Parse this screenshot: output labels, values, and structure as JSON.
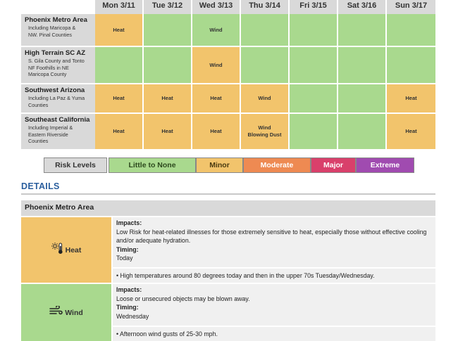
{
  "grid": {
    "days": [
      "Mon 3/11",
      "Tue 3/12",
      "Wed 3/13",
      "Thu 3/14",
      "Fri 3/15",
      "Sat 3/16",
      "Sun 3/17"
    ],
    "regions": [
      {
        "name": "Phoenix Metro Area",
        "sub": "Including Maricopa &\nNW. Pinal Counties",
        "cells": [
          {
            "risk": "minor",
            "text": "Heat"
          },
          {
            "risk": "little",
            "text": ""
          },
          {
            "risk": "little",
            "text": "Wind"
          },
          {
            "risk": "little",
            "text": ""
          },
          {
            "risk": "little",
            "text": ""
          },
          {
            "risk": "little",
            "text": ""
          },
          {
            "risk": "little",
            "text": ""
          }
        ]
      },
      {
        "name": "High Terrain SC AZ",
        "sub": "S. Gila County and Tonto\nNF Foothills in NE\nMaricopa County",
        "cells": [
          {
            "risk": "little",
            "text": ""
          },
          {
            "risk": "little",
            "text": ""
          },
          {
            "risk": "minor",
            "text": "Wind"
          },
          {
            "risk": "little",
            "text": ""
          },
          {
            "risk": "little",
            "text": ""
          },
          {
            "risk": "little",
            "text": ""
          },
          {
            "risk": "little",
            "text": ""
          }
        ]
      },
      {
        "name": "Southwest Arizona",
        "sub": "Including La Paz & Yuma\nCounties",
        "cells": [
          {
            "risk": "minor",
            "text": "Heat"
          },
          {
            "risk": "minor",
            "text": "Heat"
          },
          {
            "risk": "minor",
            "text": "Heat"
          },
          {
            "risk": "minor",
            "text": "Wind"
          },
          {
            "risk": "little",
            "text": ""
          },
          {
            "risk": "little",
            "text": ""
          },
          {
            "risk": "minor",
            "text": "Heat"
          }
        ]
      },
      {
        "name": "Southeast California",
        "sub": "Including Imperial &\nEastern Riverside\nCounties",
        "cells": [
          {
            "risk": "minor",
            "text": "Heat"
          },
          {
            "risk": "minor",
            "text": "Heat"
          },
          {
            "risk": "minor",
            "text": "Heat"
          },
          {
            "risk": "minor",
            "text": "Wind\nBlowing Dust"
          },
          {
            "risk": "little",
            "text": ""
          },
          {
            "risk": "little",
            "text": ""
          },
          {
            "risk": "minor",
            "text": "Heat"
          }
        ]
      }
    ]
  },
  "legend": {
    "title": "Risk Levels",
    "levels": [
      {
        "label": "Little to None",
        "color": "#a9d98e",
        "text_color": "#2d4a1e"
      },
      {
        "label": "Minor",
        "color": "#f2c46c",
        "text_color": "#4a3a10"
      },
      {
        "label": "Moderate",
        "color": "#ee8a52",
        "text_color": "#ffffff"
      },
      {
        "label": "Major",
        "color": "#d9406b",
        "text_color": "#ffffff"
      },
      {
        "label": "Extreme",
        "color": "#a04bb0",
        "text_color": "#ffffff"
      }
    ]
  },
  "details": {
    "title": "DETAILS",
    "section": "Phoenix Metro Area",
    "hazards": [
      {
        "name": "Heat",
        "icon": "thermometer-sun-icon",
        "color": "#f2c46c",
        "impacts_label": "Impacts:",
        "impacts": "Low Risk for heat-related illnesses for those extremely sensitive to heat, especially those without effective cooling and/or adequate hydration.",
        "timing_label": "Timing:",
        "timing": "Today",
        "bullet": "• High temperatures around 80 degrees today and then in the upper 70s Tuesday/Wednesday."
      },
      {
        "name": "Wind",
        "icon": "wind-icon",
        "color": "#a9d98e",
        "impacts_label": "Impacts:",
        "impacts": "Loose or unsecured objects may be blown away.",
        "timing_label": "Timing:",
        "timing": "Wednesday",
        "bullet": "• Afternoon wind gusts of 25-30 mph."
      }
    ]
  }
}
